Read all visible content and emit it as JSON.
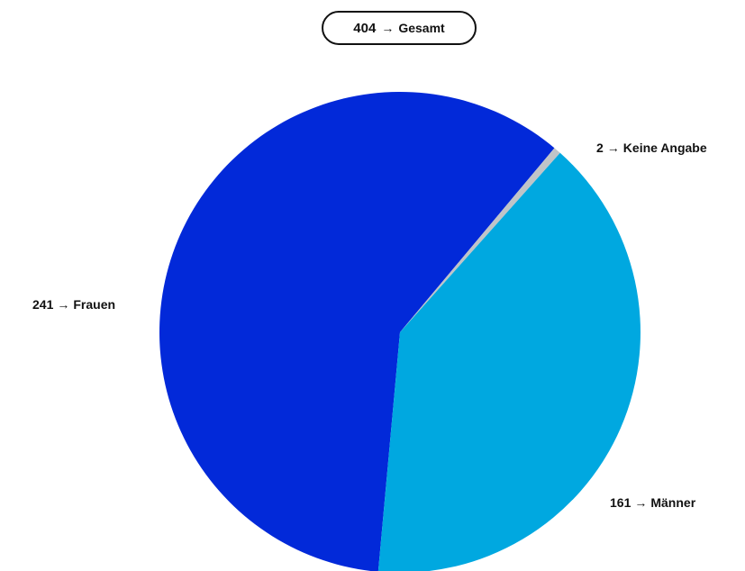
{
  "total": {
    "value": "404",
    "arrow": "→",
    "label": "Gesamt"
  },
  "chart_data": {
    "type": "pie",
    "title": "",
    "slices": [
      {
        "name": "Frauen",
        "value": 241,
        "color": "#0229d9"
      },
      {
        "name": "Keine Angabe",
        "value": 2,
        "color": "#c0c4c8"
      },
      {
        "name": "Männer",
        "value": 161,
        "color": "#00a8e0"
      }
    ],
    "total": 404
  },
  "labels": {
    "frauen": {
      "value": "241",
      "arrow": "→",
      "name": "Frauen"
    },
    "keine_angabe": {
      "value": "2",
      "arrow": "→",
      "name": "Keine Angabe"
    },
    "maenner": {
      "value": "161",
      "arrow": "→",
      "name": "Männer"
    }
  }
}
